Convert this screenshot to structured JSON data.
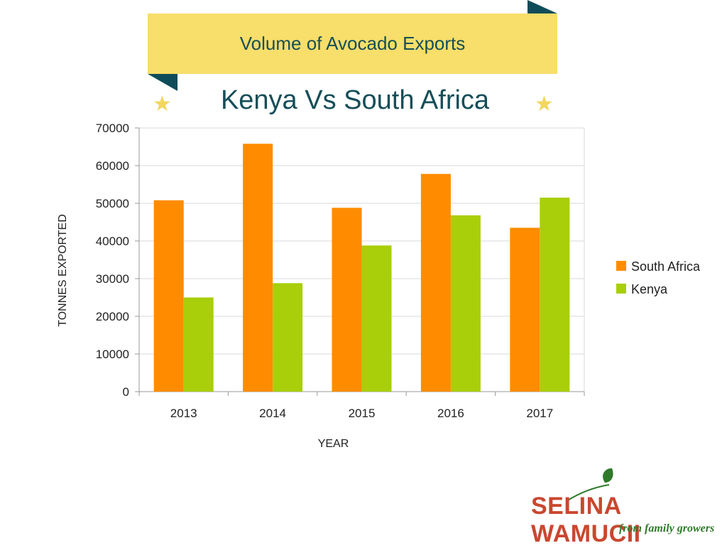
{
  "header": {
    "banner_title": "Volume of Avocado Exports",
    "subtitle": "Kenya Vs South Africa",
    "star_icon": "★"
  },
  "colors": {
    "banner": "#f8de6a",
    "banner_fold": "#0f4c59",
    "title_text": "#164e58",
    "star": "#f3d65d",
    "south_africa": "#ff8c00",
    "kenya": "#a8cf0a",
    "grid": "#d9d9d9"
  },
  "chart_data": {
    "type": "bar",
    "title": "",
    "xlabel": "YEAR",
    "ylabel": "TONNES  EXPORTED",
    "categories": [
      "2013",
      "2014",
      "2015",
      "2016",
      "2017"
    ],
    "series": [
      {
        "name": "South Africa",
        "values": [
          50800,
          65800,
          48800,
          57800,
          43500
        ]
      },
      {
        "name": "Kenya",
        "values": [
          25000,
          28800,
          38800,
          46800,
          51500
        ]
      }
    ],
    "ylim": [
      0,
      70000
    ],
    "yticks": [
      0,
      10000,
      20000,
      30000,
      40000,
      50000,
      60000,
      70000
    ],
    "grid": true,
    "legend": "right"
  },
  "logo": {
    "name": "SELINA WAMUCII",
    "tagline": "from family growers"
  }
}
